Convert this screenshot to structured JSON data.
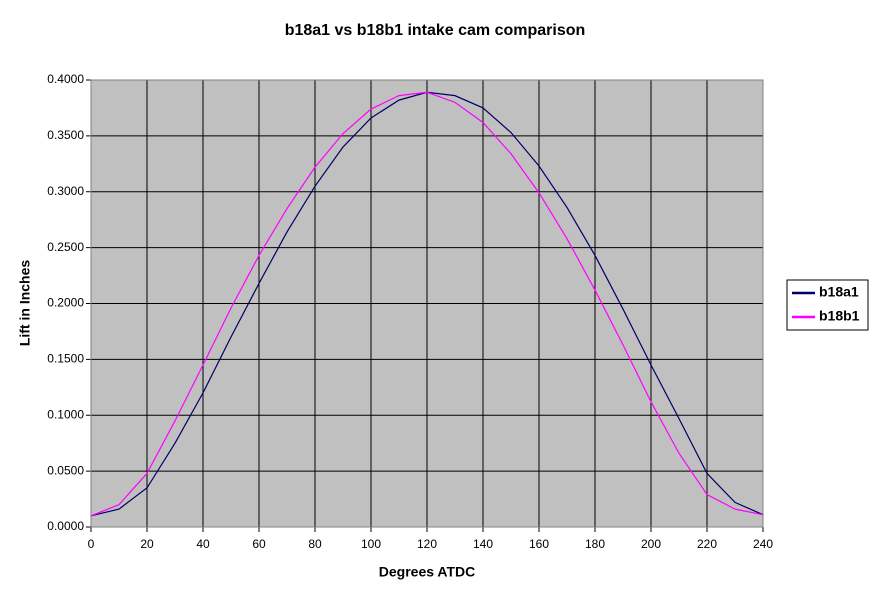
{
  "chart_data": {
    "type": "line",
    "title": "b18a1 vs b18b1 intake cam comparison",
    "x_label": "Degrees ATDC",
    "y_label": "Lift in Inches",
    "x": [
      0,
      10,
      20,
      30,
      40,
      50,
      60,
      70,
      80,
      90,
      100,
      110,
      120,
      130,
      140,
      150,
      160,
      170,
      180,
      190,
      200,
      210,
      220,
      230,
      240
    ],
    "series": [
      {
        "name": "b18a1",
        "color": "#000066",
        "values": [
          0.01,
          0.016,
          0.035,
          0.075,
          0.12,
          0.17,
          0.218,
          0.264,
          0.305,
          0.34,
          0.366,
          0.382,
          0.389,
          0.386,
          0.375,
          0.353,
          0.323,
          0.286,
          0.243,
          0.195,
          0.145,
          0.097,
          0.048,
          0.022,
          0.011
        ]
      },
      {
        "name": "b18b1",
        "color": "#ff00ff",
        "values": [
          0.01,
          0.02,
          0.048,
          0.095,
          0.145,
          0.196,
          0.243,
          0.285,
          0.322,
          0.352,
          0.374,
          0.386,
          0.389,
          0.38,
          0.362,
          0.334,
          0.299,
          0.258,
          0.212,
          0.163,
          0.112,
          0.066,
          0.029,
          0.016,
          0.011
        ]
      }
    ],
    "xlim": [
      0,
      240
    ],
    "xticks": [
      0,
      20,
      40,
      60,
      80,
      100,
      120,
      140,
      160,
      180,
      200,
      220,
      240
    ],
    "ylim": [
      0,
      0.4
    ],
    "yticks": [
      {
        "value": 0,
        "label": "0.0000"
      },
      {
        "value": 0.05,
        "label": "0.0500"
      },
      {
        "value": 0.1,
        "label": "0.1000"
      },
      {
        "value": 0.15,
        "label": "0.1500"
      },
      {
        "value": 0.2,
        "label": "0.2000"
      },
      {
        "value": 0.25,
        "label": "0.2500"
      },
      {
        "value": 0.3,
        "label": "0.3000"
      },
      {
        "value": 0.35,
        "label": "0.3500"
      },
      {
        "value": 0.4,
        "label": "0.4000"
      }
    ],
    "grid": true,
    "plot_background": "#c0c0c0",
    "legend": "right"
  }
}
